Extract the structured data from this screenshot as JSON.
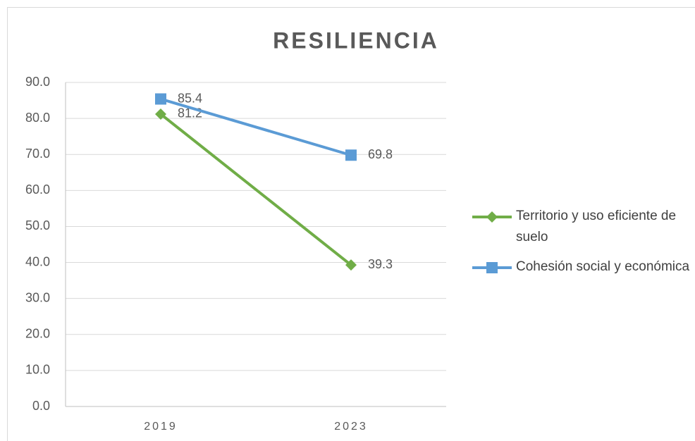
{
  "chart_data": {
    "type": "line",
    "title": "RESILIENCIA",
    "categories": [
      "2019",
      "2023"
    ],
    "series": [
      {
        "name": "Territorio y uso eficiente de suelo",
        "color": "#70ad47",
        "marker": "diamond",
        "values": [
          81.2,
          39.3
        ]
      },
      {
        "name": "Cohesión social y económica",
        "color": "#5b9bd5",
        "marker": "square",
        "values": [
          85.4,
          69.8
        ]
      }
    ],
    "ylim": [
      0,
      90
    ],
    "yticks": [
      {
        "value": 0,
        "label": "0.0"
      },
      {
        "value": 10,
        "label": "10.0"
      },
      {
        "value": 20,
        "label": "20.0"
      },
      {
        "value": 30,
        "label": "30.0"
      },
      {
        "value": 40,
        "label": "40.0"
      },
      {
        "value": 50,
        "label": "50.0"
      },
      {
        "value": 60,
        "label": "60.0"
      },
      {
        "value": 70,
        "label": "70.0"
      },
      {
        "value": 80,
        "label": "80.0"
      },
      {
        "value": 90,
        "label": "90.0"
      }
    ],
    "grid": true,
    "legend": "right"
  }
}
